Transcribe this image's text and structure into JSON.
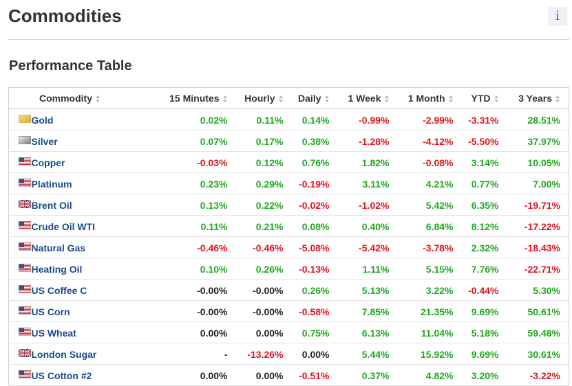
{
  "header": {
    "title": "Commodities",
    "info": "i"
  },
  "section": {
    "title": "Performance Table"
  },
  "table": {
    "columns": [
      "Commodity",
      "15 Minutes",
      "Hourly",
      "Daily",
      "1 Week",
      "1 Month",
      "YTD",
      "3 Years"
    ],
    "rows": [
      {
        "name": "Gold",
        "values": [
          "0.02%",
          "0.11%",
          "0.14%",
          "-0.99%",
          "-2.99%",
          "-3.31%",
          "28.51%"
        ]
      },
      {
        "name": "Silver",
        "values": [
          "0.07%",
          "0.17%",
          "0.38%",
          "-1.28%",
          "-4.12%",
          "-5.50%",
          "37.97%"
        ]
      },
      {
        "name": "Copper",
        "values": [
          "-0.03%",
          "0.12%",
          "0.76%",
          "1.82%",
          "-0.08%",
          "3.14%",
          "10.05%"
        ]
      },
      {
        "name": "Platinum",
        "values": [
          "0.23%",
          "0.29%",
          "-0.19%",
          "3.11%",
          "4.21%",
          "0.77%",
          "7.00%"
        ]
      },
      {
        "name": "Brent Oil",
        "values": [
          "0.13%",
          "0.22%",
          "-0.02%",
          "-1.02%",
          "5.42%",
          "6.35%",
          "-19.71%"
        ]
      },
      {
        "name": "Crude Oil WTI",
        "values": [
          "0.11%",
          "0.21%",
          "0.08%",
          "0.40%",
          "6.84%",
          "8.12%",
          "-17.22%"
        ]
      },
      {
        "name": "Natural Gas",
        "values": [
          "-0.46%",
          "-0.46%",
          "-5.08%",
          "-5.42%",
          "-3.78%",
          "2.32%",
          "-18.43%"
        ]
      },
      {
        "name": "Heating Oil",
        "values": [
          "0.10%",
          "0.26%",
          "-0.13%",
          "1.11%",
          "5.15%",
          "7.76%",
          "-22.71%"
        ]
      },
      {
        "name": "US Coffee C",
        "values": [
          "-0.00%",
          "-0.00%",
          "0.26%",
          "5.13%",
          "3.22%",
          "-0.44%",
          "5.30%"
        ]
      },
      {
        "name": "US Corn",
        "values": [
          "-0.00%",
          "-0.00%",
          "-0.58%",
          "7.85%",
          "21.35%",
          "9.69%",
          "50.61%"
        ]
      },
      {
        "name": "US Wheat",
        "values": [
          "0.00%",
          "0.00%",
          "0.75%",
          "6.13%",
          "11.04%",
          "5.18%",
          "59.48%"
        ]
      },
      {
        "name": "London Sugar",
        "values": [
          "-",
          "-13.26%",
          "0.00%",
          "5.44%",
          "15.92%",
          "9.69%",
          "30.61%"
        ]
      },
      {
        "name": "US Cotton #2",
        "values": [
          "0.00%",
          "0.00%",
          "-0.51%",
          "0.37%",
          "4.82%",
          "3.20%",
          "-3.22%"
        ]
      }
    ]
  }
}
